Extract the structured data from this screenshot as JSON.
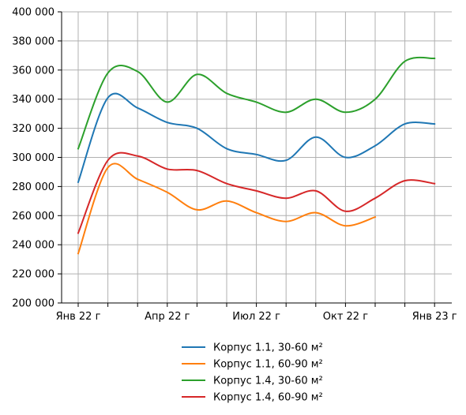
{
  "chart_data": {
    "type": "line",
    "x": [
      "Янв 22 г",
      "Фев 22 г",
      "Мар 22 г",
      "Апр 22 г",
      "Май 22 г",
      "Июн 22 г",
      "Июл 22 г",
      "Авг 22 г",
      "Сен 22 г",
      "Окт 22 г",
      "Ноя 22 г",
      "Дек 22 г",
      "Янв 23 г"
    ],
    "x_tick_labels": [
      "Янв 22 г",
      "Апр 22 г",
      "Июл 22 г",
      "Окт 22 г",
      "Янв 23 г"
    ],
    "y_tick_labels": [
      "200 000",
      "220 000",
      "240 000",
      "260 000",
      "280 000",
      "300 000",
      "320 000",
      "340 000",
      "360 000",
      "380 000",
      "400 000"
    ],
    "ylim": [
      200000,
      400000
    ],
    "grid": true,
    "legend_position": "bottom",
    "series": [
      {
        "name": "Корпус 1.1, 30-60 м²",
        "color": "#1f77b4",
        "values": [
          283000,
          341000,
          334000,
          324000,
          320000,
          306000,
          302000,
          298000,
          314000,
          300000,
          308000,
          323000,
          323000
        ]
      },
      {
        "name": "Корпус 1.1, 60-90 м²",
        "color": "#ff7f0e",
        "values": [
          234000,
          293000,
          285000,
          276000,
          264000,
          270000,
          262000,
          256000,
          262000,
          253000,
          259000,
          null,
          null
        ]
      },
      {
        "name": "Корпус 1.4, 30-60 м²",
        "color": "#2ca02c",
        "values": [
          306000,
          358000,
          359000,
          338000,
          357000,
          344000,
          338000,
          331000,
          340000,
          331000,
          340000,
          366000,
          368000
        ]
      },
      {
        "name": "Корпус 1.4, 60-90 м²",
        "color": "#d62728",
        "values": [
          248000,
          298000,
          301000,
          292000,
          291000,
          282000,
          277000,
          272000,
          277000,
          263000,
          272000,
          284000,
          282000
        ]
      }
    ]
  }
}
